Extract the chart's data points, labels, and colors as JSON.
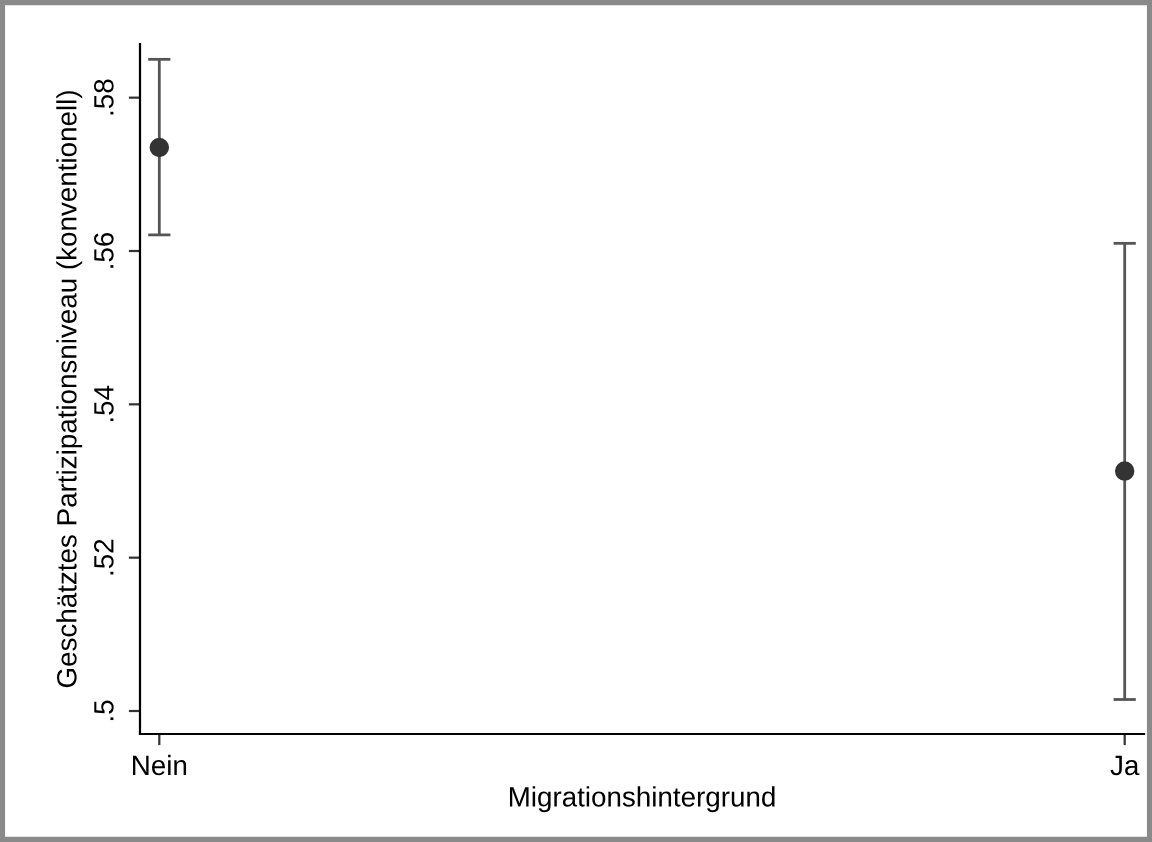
{
  "chart_data": {
    "type": "scatter",
    "xlabel": "Migrationshintergrund",
    "ylabel": "Geschätztes Partizipationsniveau (konventionell)",
    "categories": [
      "Nein",
      "Ja"
    ],
    "values": [
      0.5735,
      0.5313
    ],
    "errors": [
      [
        0.5621,
        0.585
      ],
      [
        0.5015,
        0.561
      ]
    ],
    "color": "#333333",
    "marker": "circle",
    "grid": false,
    "legend": false,
    "ylim": [
      0.497,
      0.587
    ],
    "yticks": [
      {
        "value": 0.5,
        "label": ".5"
      },
      {
        "value": 0.52,
        "label": ".52"
      },
      {
        "value": 0.54,
        "label": ".54"
      },
      {
        "value": 0.56,
        "label": ".56"
      },
      {
        "value": 0.58,
        "label": ".58"
      }
    ]
  }
}
